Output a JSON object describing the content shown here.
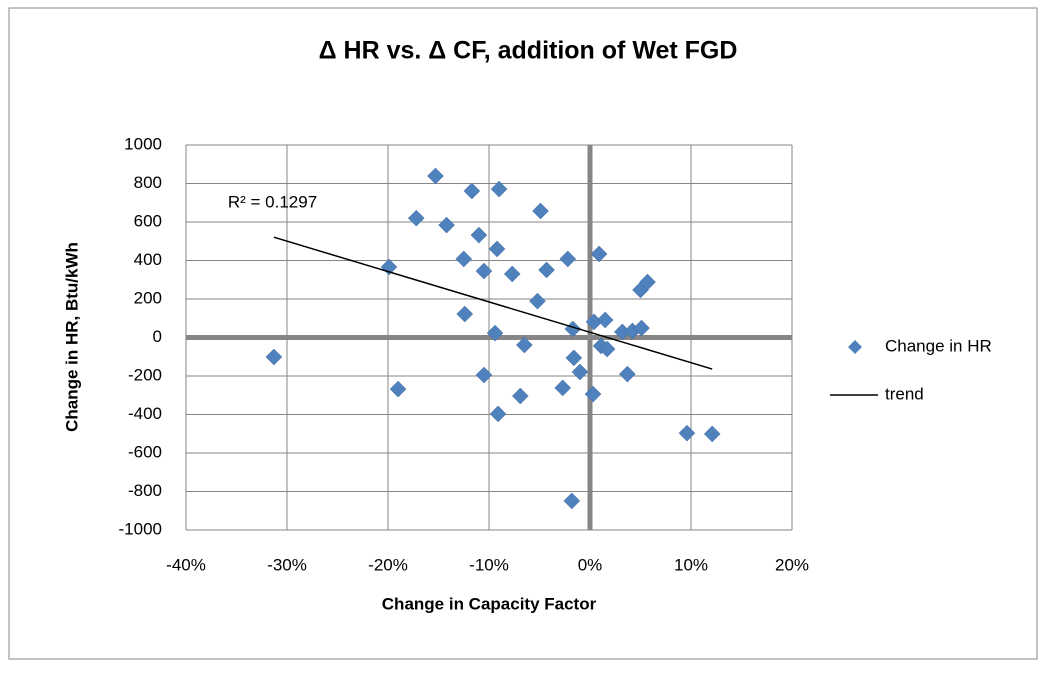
{
  "chart_data": {
    "type": "scatter",
    "title": "Δ HR vs. Δ CF, addition of Wet FGD",
    "x_label": "Change in Capacity Factor",
    "y_label": "Change in HR, Btu/kWh",
    "annotation": "R² = 0.1297",
    "xlim": [
      -40,
      20
    ],
    "xticks": [
      {
        "value": -40,
        "label": "-40%"
      },
      {
        "value": -30,
        "label": "-30%"
      },
      {
        "value": -20,
        "label": "-20%"
      },
      {
        "value": -10,
        "label": "-10%"
      },
      {
        "value": 0,
        "label": "0%"
      },
      {
        "value": 10,
        "label": "10%"
      },
      {
        "value": 20,
        "label": "20%"
      }
    ],
    "ylim": [
      -1000,
      1000
    ],
    "yticks": [
      -1000,
      -800,
      -600,
      -400,
      -200,
      0,
      200,
      400,
      600,
      800,
      1000
    ],
    "grid": true,
    "zero_lines": true,
    "legend": "right",
    "series": [
      {
        "name": "Change in HR",
        "color": "#4f81bd",
        "style": "marker",
        "x": [
          -31.3,
          -19.9,
          -19.0,
          -17.2,
          -15.3,
          -14.2,
          -12.4,
          -12.5,
          -11.7,
          -11.0,
          -10.5,
          -10.5,
          -9.2,
          -9.0,
          -9.4,
          -9.1,
          -7.7,
          -6.9,
          -6.5,
          -5.2,
          -4.9,
          -4.3,
          -2.7,
          -2.2,
          -1.7,
          -1.6,
          -1.8,
          -1.0,
          0.3,
          0.4,
          0.9,
          1.5,
          1.1,
          1.7,
          3.2,
          3.7,
          4.2,
          5.1,
          5.0,
          5.7,
          9.6,
          12.1
        ],
        "values": [
          -101,
          366,
          -268,
          620,
          839,
          584,
          122,
          408,
          761,
          532,
          345,
          -195,
          460,
          771,
          23,
          -397,
          330,
          -304,
          -39,
          189,
          657,
          351,
          -262,
          408,
          44,
          -106,
          -849,
          -179,
          -294,
          81,
          434,
          91,
          -44,
          -60,
          29,
          -190,
          34,
          49,
          247,
          288,
          -497,
          -501
        ]
      },
      {
        "name": "trend",
        "color": "#000000",
        "style": "line",
        "x": [
          -31.3,
          12.1
        ],
        "values": [
          521,
          -164
        ]
      }
    ]
  }
}
